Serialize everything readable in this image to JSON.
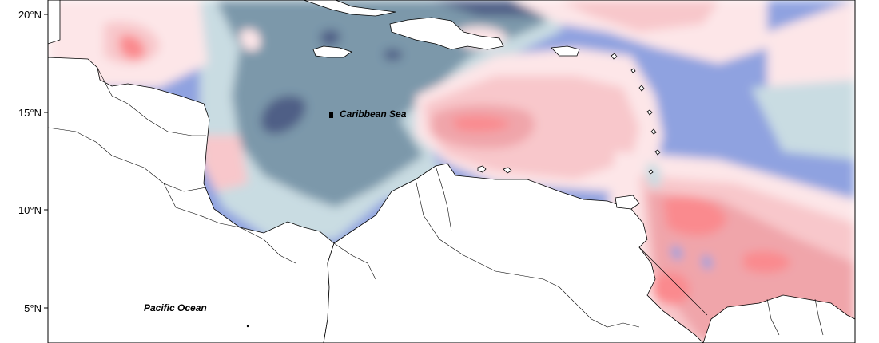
{
  "map": {
    "labels": {
      "caribbean_sea": "Caribbean Sea",
      "pacific_ocean": "Pacific Ocean"
    },
    "latitude_ticks": [
      "20°N",
      "15°N",
      "10°N",
      "5°N"
    ],
    "color_scale": {
      "dark_slate": "#4f5f86",
      "slate": "#7b98aa",
      "periwinkle": "#8fa2e0",
      "light_blue_gray": "#c9dce2",
      "pale_pink": "#fde6e8",
      "light_pink": "#f8c7cb",
      "medium_pink": "#f0a5aa",
      "salmon": "#fa8a8e"
    },
    "land_color": "#ffffff",
    "coastline_color": "#000000"
  }
}
